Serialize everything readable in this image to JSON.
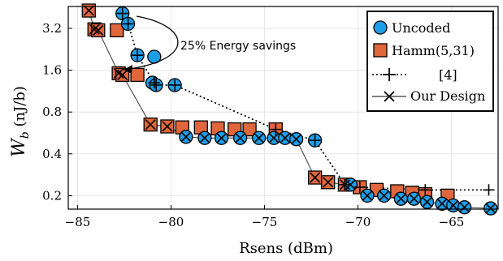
{
  "chart_data": {
    "type": "scatter",
    "xlabel": "Rsens (dBm)",
    "ylabel": "W_b (nJ/b)",
    "ylabel_main": "W",
    "ylabel_sub": "b",
    "ylabel_unit": " (nJ/b)",
    "y_scale": "log2",
    "xlim": [
      -85.5,
      -62.5
    ],
    "ylim": [
      0.16,
      4.6
    ],
    "x_ticks": [
      -85,
      -80,
      -75,
      -70,
      -65
    ],
    "x_tick_labels": [
      "−85",
      "−80",
      "−75",
      "−70",
      "−65"
    ],
    "y_ticks": [
      0.2,
      0.4,
      0.8,
      1.6,
      3.2
    ],
    "y_tick_labels": [
      "0.2",
      "0.4",
      "0.8",
      "1.6",
      "3.2"
    ],
    "grid": true,
    "legend_position": "top-right",
    "legend": [
      "Uncoded",
      "Hamm(5,31)",
      "[4]",
      "Our Design"
    ],
    "annotation": "25% Energy savings",
    "colors": {
      "uncoded": "#1f9ee8",
      "hamming": "#e0663c",
      "dotted": "#000000",
      "solid": "#555555"
    },
    "series": [
      {
        "name": "Uncoded",
        "marker": "circle",
        "points": [
          [
            -82.6,
            4.1
          ],
          [
            -82.3,
            3.45
          ],
          [
            -81.8,
            2.05
          ],
          [
            -80.9,
            2.0
          ],
          [
            -81.0,
            1.3
          ],
          [
            -80.8,
            1.25
          ],
          [
            -79.8,
            1.25
          ],
          [
            -79.2,
            0.53
          ],
          [
            -78.2,
            0.52
          ],
          [
            -77.3,
            0.52
          ],
          [
            -76.3,
            0.52
          ],
          [
            -75.3,
            0.52
          ],
          [
            -74.5,
            0.52
          ],
          [
            -73.9,
            0.52
          ],
          [
            -73.3,
            0.51
          ],
          [
            -72.3,
            0.5
          ],
          [
            -70.4,
            0.24
          ],
          [
            -69.5,
            0.2
          ],
          [
            -68.6,
            0.2
          ],
          [
            -67.7,
            0.19
          ],
          [
            -67.0,
            0.19
          ],
          [
            -66.3,
            0.18
          ],
          [
            -65.5,
            0.175
          ],
          [
            -64.9,
            0.17
          ],
          [
            -64.3,
            0.165
          ],
          [
            -62.9,
            0.162
          ]
        ]
      },
      {
        "name": "Hamm(5,31)",
        "marker": "square",
        "points": [
          [
            -84.4,
            4.3
          ],
          [
            -84.1,
            3.15
          ],
          [
            -83.9,
            3.1
          ],
          [
            -82.9,
            3.1
          ],
          [
            -82.8,
            1.52
          ],
          [
            -82.6,
            1.48
          ],
          [
            -81.8,
            1.48
          ],
          [
            -81.1,
            0.65
          ],
          [
            -80.2,
            0.63
          ],
          [
            -79.4,
            0.62
          ],
          [
            -78.4,
            0.62
          ],
          [
            -77.5,
            0.61
          ],
          [
            -76.6,
            0.6
          ],
          [
            -75.8,
            0.6
          ],
          [
            -74.4,
            0.6
          ],
          [
            -72.3,
            0.27
          ],
          [
            -71.6,
            0.25
          ],
          [
            -70.7,
            0.24
          ],
          [
            -69.9,
            0.23
          ],
          [
            -69.0,
            0.22
          ],
          [
            -67.9,
            0.215
          ],
          [
            -67.1,
            0.21
          ],
          [
            -66.4,
            0.205
          ],
          [
            -65.2,
            0.2
          ]
        ]
      },
      {
        "name": "[4]",
        "marker": "plus",
        "line": "dotted",
        "points": [
          [
            -82.6,
            4.1
          ],
          [
            -82.3,
            3.45
          ],
          [
            -81.8,
            2.05
          ],
          [
            -80.9,
            1.3
          ],
          [
            -80.8,
            1.25
          ],
          [
            -79.8,
            1.25
          ],
          [
            -74.4,
            0.6
          ],
          [
            -72.3,
            0.5
          ],
          [
            -70.7,
            0.24
          ],
          [
            -69.9,
            0.23
          ],
          [
            -66.4,
            0.22
          ],
          [
            -63.0,
            0.22
          ]
        ]
      },
      {
        "name": "Our Design",
        "marker": "x",
        "line": "solid",
        "points": [
          [
            -84.4,
            4.3
          ],
          [
            -84.1,
            3.15
          ],
          [
            -83.9,
            3.1
          ],
          [
            -82.8,
            1.52
          ],
          [
            -82.6,
            1.48
          ],
          [
            -81.1,
            0.65
          ],
          [
            -80.2,
            0.63
          ],
          [
            -79.2,
            0.53
          ],
          [
            -78.2,
            0.52
          ],
          [
            -77.3,
            0.52
          ],
          [
            -76.3,
            0.52
          ],
          [
            -75.3,
            0.52
          ],
          [
            -74.5,
            0.52
          ],
          [
            -73.9,
            0.52
          ],
          [
            -73.3,
            0.51
          ],
          [
            -72.3,
            0.27
          ],
          [
            -71.6,
            0.25
          ],
          [
            -70.7,
            0.24
          ],
          [
            -70.4,
            0.24
          ],
          [
            -69.5,
            0.2
          ],
          [
            -68.6,
            0.2
          ],
          [
            -67.7,
            0.19
          ],
          [
            -67.0,
            0.19
          ],
          [
            -66.3,
            0.18
          ],
          [
            -65.5,
            0.175
          ],
          [
            -64.9,
            0.17
          ],
          [
            -64.3,
            0.165
          ],
          [
            -62.9,
            0.162
          ]
        ]
      }
    ]
  }
}
